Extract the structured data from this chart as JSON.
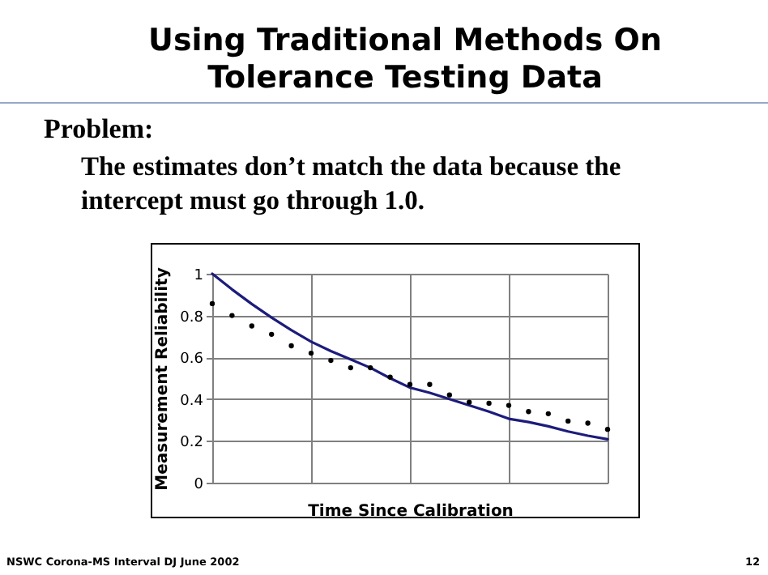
{
  "chart_data": {
    "type": "scatter",
    "title": "Using Traditional Methods On Tolerance Testing Data",
    "subtitle": "Problem:",
    "annotations": [
      "The estimates don’t match the data because the intercept must go through 1.0.",
      "NSWC Corona-MS Interval DJ June 2002",
      "12"
    ],
    "xlabel": "Time Since Calibration",
    "ylabel": "Measurement Reliability",
    "categories": [
      null,
      null,
      null,
      null,
      null,
      null,
      null,
      null,
      null,
      null,
      null,
      null,
      null,
      null,
      null,
      null,
      null,
      null,
      null,
      null,
      null
    ],
    "series": [
      {
        "type": "line",
        "color": "#1c1c7c",
        "values": [
          1.0,
          0.925,
          0.855,
          0.79,
          0.73,
          0.675,
          0.63,
          0.59,
          0.55,
          0.5,
          0.455,
          0.43,
          0.4,
          0.37,
          0.34,
          0.306,
          0.29,
          0.27,
          0.245,
          0.225,
          0.208
        ]
      },
      {
        "color": "#000000",
        "values": [
          0.857,
          0.8,
          0.75,
          0.71,
          0.655,
          0.62,
          0.585,
          0.55,
          0.55,
          0.505,
          0.47,
          0.47,
          0.42,
          0.385,
          0.38,
          0.37,
          0.34,
          0.33,
          0.295,
          0.285,
          0.255
        ]
      }
    ],
    "ylim": [
      0,
      1
    ],
    "yticks": [
      0,
      0.2,
      0.4,
      0.6,
      0.8,
      1
    ],
    "tick_labels": "y",
    "grid": true
  }
}
